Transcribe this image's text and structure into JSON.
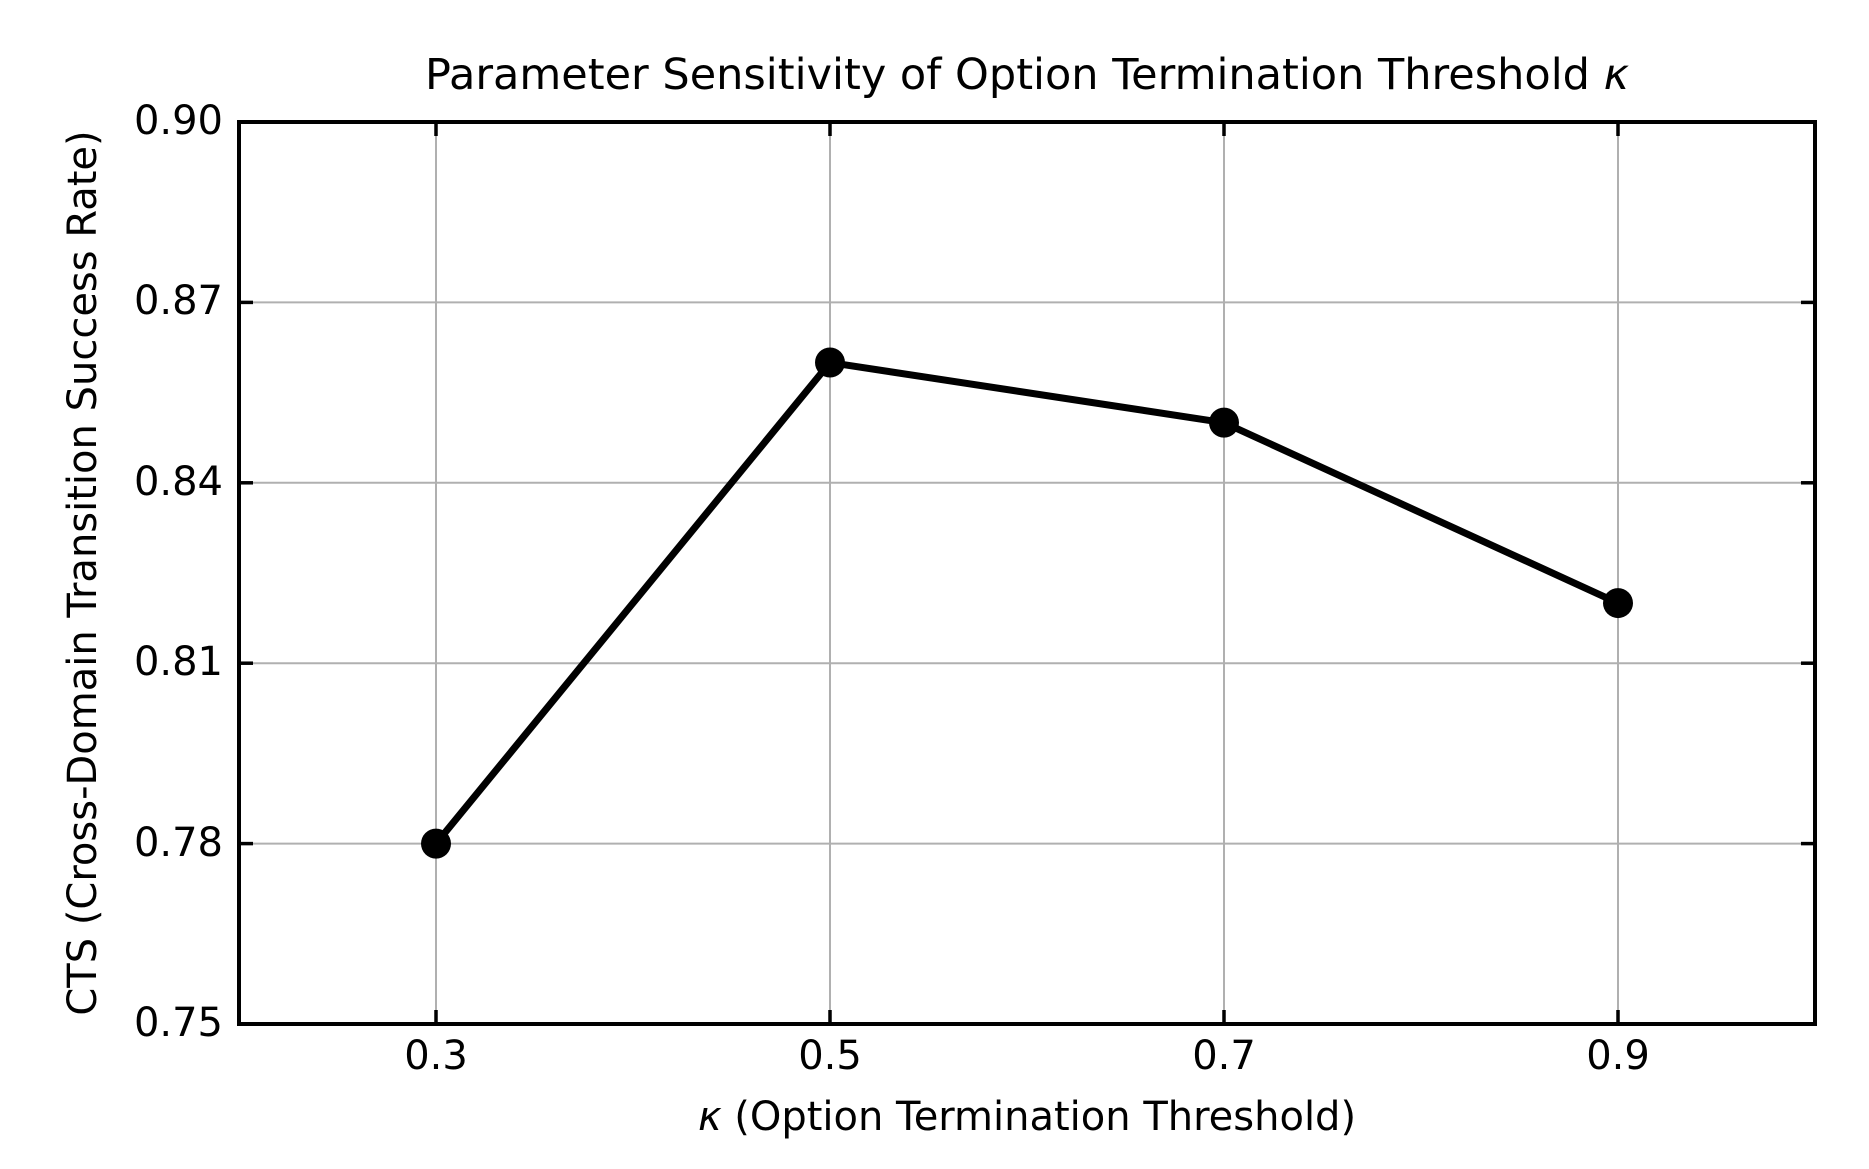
{
  "chart_data": {
    "type": "line",
    "title": "Parameter Sensitivity of Option Termination Threshold κ",
    "title_parts": {
      "prefix": "Parameter Sensitivity of Option Termination Threshold ",
      "symbol": "κ"
    },
    "xlabel": "κ (Option Termination Threshold)",
    "xlabel_parts": {
      "symbol": "κ",
      "suffix": " (Option Termination Threshold)"
    },
    "ylabel": "CTS (Cross-Domain Transition Success Rate)",
    "series": [
      {
        "name": "CTS",
        "x": [
          0.3,
          0.5,
          0.7,
          0.9
        ],
        "y": [
          0.78,
          0.86,
          0.85,
          0.82
        ]
      }
    ],
    "xlim": [
      0.2,
      1.0
    ],
    "ylim": [
      0.75,
      0.9
    ],
    "xticks": [
      0.3,
      0.5,
      0.7,
      0.9
    ],
    "xtick_labels": [
      "0.3",
      "0.5",
      "0.7",
      "0.9"
    ],
    "yticks": [
      0.75,
      0.78,
      0.81,
      0.84,
      0.87,
      0.9
    ],
    "ytick_labels": [
      "0.75",
      "0.78",
      "0.81",
      "0.84",
      "0.87",
      "0.90"
    ],
    "grid": true,
    "legend": "none",
    "colors": {
      "line": "#000000",
      "marker": "#000000",
      "grid": "#b0b0b0",
      "axis": "#000000",
      "background": "#ffffff",
      "text": "#000000"
    }
  }
}
